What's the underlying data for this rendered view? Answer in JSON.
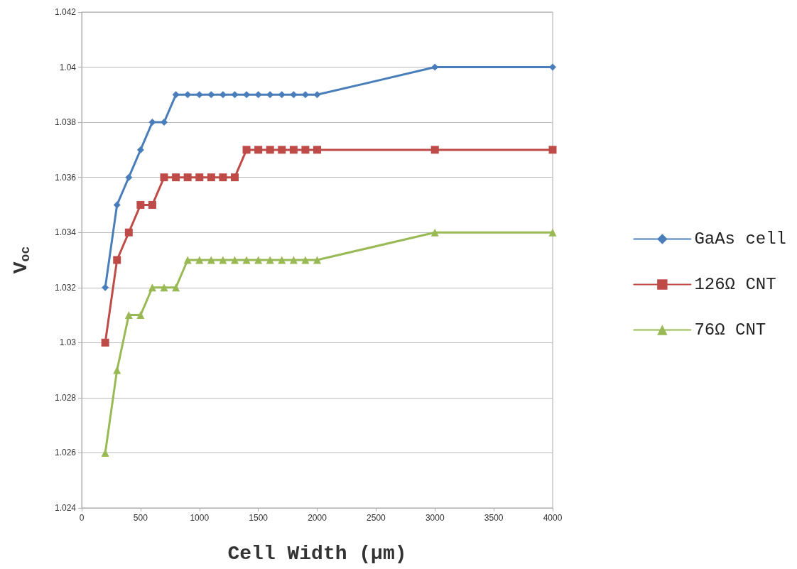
{
  "chart_data": {
    "type": "line",
    "xlabel": "Cell Width (µm)",
    "ylabel": "V$_{oc}$",
    "x": [
      200,
      300,
      400,
      500,
      600,
      700,
      800,
      900,
      1000,
      1100,
      1200,
      1300,
      1400,
      1500,
      1600,
      1700,
      1800,
      1900,
      2000,
      3000,
      4000
    ],
    "series": [
      {
        "name": "GaAs cell",
        "color": "#4a7ebb",
        "marker": "diamond",
        "values": [
          1.032,
          1.035,
          1.036,
          1.037,
          1.038,
          1.038,
          1.039,
          1.039,
          1.039,
          1.039,
          1.039,
          1.039,
          1.039,
          1.039,
          1.039,
          1.039,
          1.039,
          1.039,
          1.039,
          1.04,
          1.04
        ]
      },
      {
        "name": "126Ω CNT",
        "color": "#be4b48",
        "marker": "square",
        "values": [
          1.03,
          1.033,
          1.034,
          1.035,
          1.035,
          1.036,
          1.036,
          1.036,
          1.036,
          1.036,
          1.036,
          1.036,
          1.037,
          1.037,
          1.037,
          1.037,
          1.037,
          1.037,
          1.037,
          1.037,
          1.037
        ]
      },
      {
        "name": "76Ω CNT",
        "color": "#98b954",
        "marker": "triangle",
        "values": [
          1.026,
          1.029,
          1.031,
          1.031,
          1.032,
          1.032,
          1.032,
          1.033,
          1.033,
          1.033,
          1.033,
          1.033,
          1.033,
          1.033,
          1.033,
          1.033,
          1.033,
          1.033,
          1.033,
          1.034,
          1.034
        ]
      }
    ],
    "xlim": [
      0,
      4000
    ],
    "xticks": [
      0,
      500,
      1000,
      1500,
      2000,
      2500,
      3000,
      3500,
      4000
    ],
    "ylim": [
      1.024,
      1.042
    ],
    "yticks": [
      1.024,
      1.026,
      1.028,
      1.03,
      1.032,
      1.034,
      1.036,
      1.038,
      1.04,
      1.042
    ],
    "grid": "y",
    "legend": "right",
    "line_style": "solid"
  }
}
